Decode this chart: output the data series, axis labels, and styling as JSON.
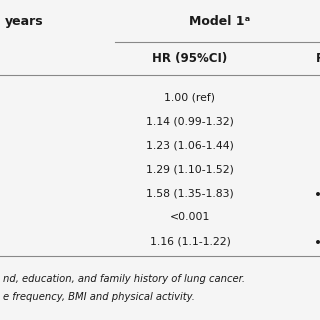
{
  "header_left": "years",
  "header_model": "Model 1ᵃ",
  "header_hr": "HR (95%CI)",
  "header_p": "P",
  "rows": [
    {
      "hr": "1.00 (ref)",
      "p": ""
    },
    {
      "hr": "1.14 (0.99-1.32)",
      "p": ""
    },
    {
      "hr": "1.23 (1.06-1.44)",
      "p": ""
    },
    {
      "hr": "1.29 (1.10-1.52)",
      "p": ""
    },
    {
      "hr": "1.58 (1.35-1.83)",
      "p": "•"
    },
    {
      "hr": "<0.001",
      "p": ""
    },
    {
      "hr": "1.16 (1.1-1.22)",
      "p": "•"
    }
  ],
  "footnote1": "nd, education, and family history of lung cancer.",
  "footnote2": "e frequency, BMI and physical activity.",
  "bg_color": "#f5f5f5",
  "text_color": "#1a1a1a",
  "line_color": "#888888",
  "font_size": 7.8,
  "header_font_size": 9.0,
  "sub_header_font_size": 8.5,
  "footnote_font_size": 7.2
}
